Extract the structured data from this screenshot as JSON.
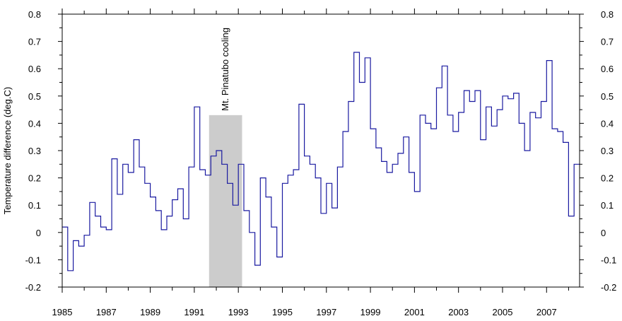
{
  "chart_data": {
    "type": "line",
    "title": "",
    "xlabel": "",
    "ylabel": "Temperature difference (deg.C)",
    "xlim": [
      1985,
      2008.5
    ],
    "ylim": [
      -0.2,
      0.8
    ],
    "x_ticks": [
      "1985",
      "1987",
      "1989",
      "1991",
      "1993",
      "1995",
      "1997",
      "1999",
      "2001",
      "2003",
      "2005",
      "2007"
    ],
    "y_ticks_left": [
      "0.8",
      "0.7",
      "0.6",
      "0.5",
      "0.4",
      "0.3",
      "0.2",
      "0.1",
      "0",
      "-0.1",
      "-0.2"
    ],
    "y_ticks_right": [
      "0.8",
      "0.7",
      "0.6",
      "0.5",
      "0.4",
      "0.3",
      "0.2",
      "0.1",
      "0",
      "-0.1",
      "-0.2"
    ],
    "grid": false,
    "line_color": "#1a1aa0",
    "shade_color": "#cccccc",
    "annotation": {
      "text": "Mt. Pinatubo cooling",
      "x_start": 1991.67,
      "x_end": 1993.17,
      "y_top": 0.43
    },
    "series": [
      {
        "step": true,
        "x": [
          1985.0,
          1985.25,
          1985.5,
          1985.75,
          1986.0,
          1986.25,
          1986.5,
          1986.75,
          1987.0,
          1987.25,
          1987.5,
          1987.75,
          1988.0,
          1988.25,
          1988.5,
          1988.75,
          1989.0,
          1989.25,
          1989.5,
          1989.75,
          1990.0,
          1990.25,
          1990.5,
          1990.75,
          1991.0,
          1991.25,
          1991.5,
          1991.75,
          1992.0,
          1992.25,
          1992.5,
          1992.75,
          1993.0,
          1993.25,
          1993.5,
          1993.75,
          1994.0,
          1994.25,
          1994.5,
          1994.75,
          1995.0,
          1995.25,
          1995.5,
          1995.75,
          1996.0,
          1996.25,
          1996.5,
          1996.75,
          1997.0,
          1997.25,
          1997.5,
          1997.75,
          1998.0,
          1998.25,
          1998.5,
          1998.75,
          1999.0,
          1999.25,
          1999.5,
          1999.75,
          2000.0,
          2000.25,
          2000.5,
          2000.75,
          2001.0,
          2001.25,
          2001.5,
          2001.75,
          2002.0,
          2002.25,
          2002.5,
          2002.75,
          2003.0,
          2003.25,
          2003.5,
          2003.75,
          2004.0,
          2004.25,
          2004.5,
          2004.75,
          2005.0,
          2005.25,
          2005.5,
          2005.75,
          2006.0,
          2006.25,
          2006.5,
          2006.75,
          2007.0,
          2007.25,
          2007.5,
          2007.75,
          2008.0,
          2008.25
        ],
        "values": [
          0.02,
          -0.14,
          -0.03,
          -0.05,
          -0.01,
          0.11,
          0.06,
          0.02,
          0.01,
          0.27,
          0.14,
          0.25,
          0.22,
          0.34,
          0.24,
          0.18,
          0.13,
          0.08,
          0.01,
          0.06,
          0.12,
          0.16,
          0.05,
          0.24,
          0.46,
          0.23,
          0.21,
          0.28,
          0.3,
          0.25,
          0.18,
          0.1,
          0.25,
          0.08,
          0.0,
          -0.12,
          0.2,
          0.13,
          0.02,
          -0.09,
          0.18,
          0.21,
          0.23,
          0.47,
          0.28,
          0.25,
          0.2,
          0.07,
          0.18,
          0.09,
          0.24,
          0.37,
          0.48,
          0.66,
          0.55,
          0.64,
          0.38,
          0.31,
          0.26,
          0.22,
          0.25,
          0.29,
          0.35,
          0.22,
          0.15,
          0.43,
          0.4,
          0.38,
          0.53,
          0.61,
          0.43,
          0.37,
          0.44,
          0.52,
          0.48,
          0.52,
          0.34,
          0.46,
          0.39,
          0.45,
          0.5,
          0.49,
          0.51,
          0.4,
          0.3,
          0.44,
          0.42,
          0.48,
          0.63,
          0.38,
          0.37,
          0.33,
          0.06,
          0.25
        ]
      }
    ]
  }
}
